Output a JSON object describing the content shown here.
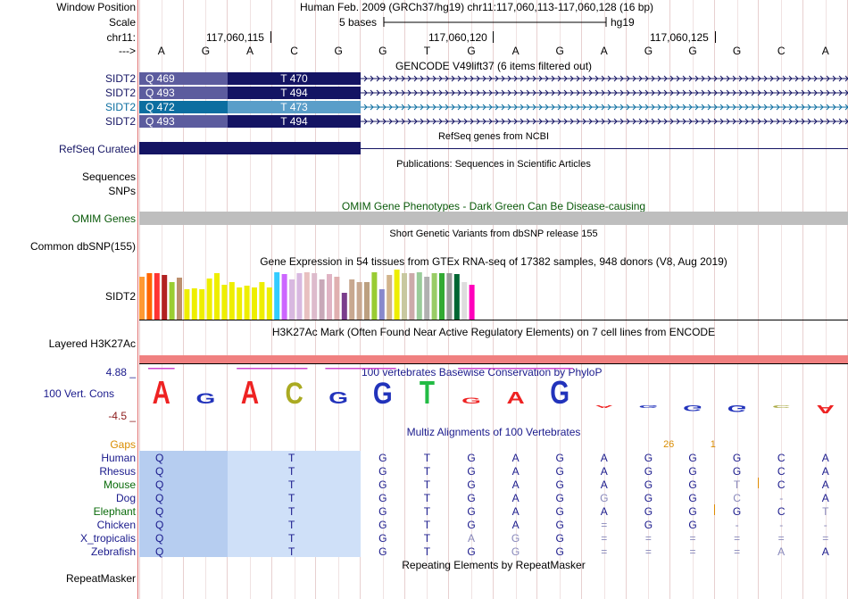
{
  "header": {
    "window_position_label": "Window Position",
    "window_position_text": "Human Feb. 2009 (GRCh37/hg19)   chr11:117,060,113-117,060,128 (16 bp)",
    "scale_label": "Scale",
    "scale_text": "5 bases",
    "scale_assembly": "hg19",
    "chrom_label": "chr11:",
    "positions": [
      "117,060,115",
      "117,060,120",
      "117,060,125"
    ],
    "strand_label": "--->",
    "bases": [
      "A",
      "G",
      "A",
      "C",
      "G",
      "G",
      "T",
      "G",
      "A",
      "G",
      "A",
      "G",
      "G",
      "G",
      "C",
      "A"
    ]
  },
  "gencode": {
    "title": "GENCODE V49lift37 (6 items filtered out)",
    "rows": [
      {
        "label": "SIDT2",
        "q": "Q 469",
        "t": "T 470",
        "color": "#141463",
        "qcolor": "#5c5c9e",
        "arrow": "#141463"
      },
      {
        "label": "SIDT2",
        "q": "Q 493",
        "t": "T 494",
        "color": "#141463",
        "qcolor": "#5c5c9e",
        "arrow": "#141463"
      },
      {
        "label": "SIDT2",
        "q": "Q 472",
        "t": "T 473",
        "color": "#5a9ec9",
        "qcolor": "#0c6ea0",
        "arrow": "#0c6ea0"
      },
      {
        "label": "SIDT2",
        "q": "Q 493",
        "t": "T 494",
        "color": "#141463",
        "qcolor": "#5c5c9e",
        "arrow": "#141463"
      }
    ]
  },
  "refseq": {
    "label": "RefSeq Curated",
    "caption": "RefSeq genes from NCBI"
  },
  "publications": {
    "caption": "Publications: Sequences in Scientific Articles"
  },
  "sequences": {
    "label": "Sequences"
  },
  "snps": {
    "label": "SNPs"
  },
  "omim": {
    "label": "OMIM Genes",
    "caption": "OMIM Gene Phenotypes - Dark Green Can Be Disease-causing"
  },
  "dbsnp": {
    "label": "Common dbSNP(155)",
    "caption": "Short Genetic Variants from dbSNP release 155"
  },
  "gtex": {
    "caption": "Gene Expression in 54 tissues from GTEx RNA-seq of 17382 samples, 948 donors (V8, Aug 2019)",
    "label": "SIDT2",
    "bars": [
      {
        "level": 0.86,
        "color": "#ff9933"
      },
      {
        "level": 0.93,
        "color": "#ff6600"
      },
      {
        "level": 0.93,
        "color": "#ff3333"
      },
      {
        "level": 0.9,
        "color": "#b22222"
      },
      {
        "level": 0.75,
        "color": "#9acd32"
      },
      {
        "level": 0.84,
        "color": "#bc8f6e"
      },
      {
        "level": 0.6,
        "color": "#eeee00"
      },
      {
        "level": 0.62,
        "color": "#eeee00"
      },
      {
        "level": 0.6,
        "color": "#eeee00"
      },
      {
        "level": 0.82,
        "color": "#eeee00"
      },
      {
        "level": 0.93,
        "color": "#eeee00"
      },
      {
        "level": 0.7,
        "color": "#eeee00"
      },
      {
        "level": 0.75,
        "color": "#eeee00"
      },
      {
        "level": 0.65,
        "color": "#eeee00"
      },
      {
        "level": 0.68,
        "color": "#eeee00"
      },
      {
        "level": 0.65,
        "color": "#eeee00"
      },
      {
        "level": 0.75,
        "color": "#eeee00"
      },
      {
        "level": 0.65,
        "color": "#eeee00"
      },
      {
        "level": 0.95,
        "color": "#33ccff"
      },
      {
        "level": 0.91,
        "color": "#cc66ff"
      },
      {
        "level": 0.8,
        "color": "#d8b8e0"
      },
      {
        "level": 0.93,
        "color": "#d8b8e0"
      },
      {
        "level": 0.95,
        "color": "#e8c0c0"
      },
      {
        "level": 0.93,
        "color": "#ddbbcc"
      },
      {
        "level": 0.8,
        "color": "#c8a8b8"
      },
      {
        "level": 0.91,
        "color": "#e0b4c4"
      },
      {
        "level": 0.86,
        "color": "#e0b0b0"
      },
      {
        "level": 0.53,
        "color": "#7a3d8c"
      },
      {
        "level": 0.8,
        "color": "#c8a890"
      },
      {
        "level": 0.75,
        "color": "#c8a890"
      },
      {
        "level": 0.75,
        "color": "#bca080"
      },
      {
        "level": 0.95,
        "color": "#99cc33"
      },
      {
        "level": 0.6,
        "color": "#8888cc"
      },
      {
        "level": 0.9,
        "color": "#d2b48c"
      },
      {
        "level": 1.0,
        "color": "#eeee00"
      },
      {
        "level": 0.93,
        "color": "#c8c8a0"
      },
      {
        "level": 0.93,
        "color": "#ccaaaa"
      },
      {
        "level": 0.95,
        "color": "#99cc99"
      },
      {
        "level": 0.86,
        "color": "#b0b0b0"
      },
      {
        "level": 0.93,
        "color": "#99cc66"
      },
      {
        "level": 0.93,
        "color": "#33aa33"
      },
      {
        "level": 0.93,
        "color": "#999999"
      },
      {
        "level": 0.91,
        "color": "#006633"
      },
      {
        "level": 0.75,
        "color": "#dddddd"
      },
      {
        "level": 0.7,
        "color": "#ff00bb"
      }
    ]
  },
  "h3k27ac": {
    "label": "Layered H3K27Ac",
    "caption": "H3K27Ac Mark (Often Found Near Active Regulatory Elements) on 7 cell lines from ENCODE"
  },
  "conservation": {
    "label": "100 Vert. Cons",
    "max_label": "4.88 _",
    "min_label": "-4.5 _",
    "caption": "100 vertebrates Basewise Conservation by PhyloP",
    "logo": [
      {
        "letter": "A",
        "color": "#ee2222",
        "level": 1.0
      },
      {
        "letter": "G",
        "color": "#2233bb",
        "level": 0.45
      },
      {
        "letter": "A",
        "color": "#ee2222",
        "level": 1.0
      },
      {
        "letter": "C",
        "color": "#aaaa22",
        "level": 0.95
      },
      {
        "letter": "G",
        "color": "#2233bb",
        "level": 0.5
      },
      {
        "letter": "G",
        "color": "#2233bb",
        "level": 0.95
      },
      {
        "letter": "T",
        "color": "#22bb44",
        "level": 1.0
      },
      {
        "letter": "G",
        "color": "#ee2222",
        "level": 0.25
      },
      {
        "letter": "A",
        "color": "#ee2222",
        "level": 0.5
      },
      {
        "letter": "G",
        "color": "#2233bb",
        "level": 1.0
      },
      {
        "letter": "A",
        "color": "#ee2222",
        "level": -0.1
      },
      {
        "letter": "G",
        "color": "#2233bb",
        "level": -0.05
      },
      {
        "letter": "G",
        "color": "#2233bb",
        "level": -0.25
      },
      {
        "letter": "G",
        "color": "#2233bb",
        "level": -0.3
      },
      {
        "letter": "C",
        "color": "#aaaa44",
        "level": -0.1
      },
      {
        "letter": "A",
        "color": "#ee2222",
        "level": -0.35
      }
    ]
  },
  "multiz": {
    "caption": "Multiz Alignments of 100 Vertebrates",
    "gaps_label": "Gaps",
    "gap_counts": [
      {
        "col": 12,
        "text": "26"
      },
      {
        "col": 13,
        "text": "1"
      }
    ],
    "species": [
      {
        "name": "Human",
        "bases": [
          "G",
          "T",
          "G",
          "A",
          "G",
          "A",
          "G",
          "G",
          "G",
          "C",
          "A"
        ],
        "faded": []
      },
      {
        "name": "Rhesus",
        "bases": [
          "G",
          "T",
          "G",
          "A",
          "G",
          "A",
          "G",
          "G",
          "G",
          "C",
          "A"
        ],
        "faded": []
      },
      {
        "name": "Mouse",
        "bases": [
          "G",
          "T",
          "G",
          "A",
          "G",
          "A",
          "G",
          "G",
          "T",
          "C",
          "A"
        ],
        "faded": [
          8
        ],
        "color": "#0a6b0a"
      },
      {
        "name": "Dog",
        "bases": [
          "G",
          "T",
          "G",
          "A",
          "G",
          "G",
          "G",
          "G",
          "C",
          "-",
          "A"
        ],
        "faded": [
          5,
          8,
          9
        ]
      },
      {
        "name": "Elephant",
        "bases": [
          "G",
          "T",
          "G",
          "A",
          "G",
          "A",
          "G",
          "G",
          "G",
          "C",
          "T"
        ],
        "faded": [
          10
        ],
        "color": "#0a6b0a"
      },
      {
        "name": "Chicken",
        "bases": [
          "G",
          "T",
          "G",
          "A",
          "G",
          "=",
          "G",
          "G",
          "-",
          "-",
          "-"
        ],
        "faded": [
          5,
          8,
          9,
          10
        ]
      },
      {
        "name": "X_tropicalis",
        "bases": [
          "G",
          "T",
          "A",
          "G",
          "G",
          "=",
          "=",
          "=",
          "=",
          "=",
          "="
        ],
        "faded": [
          2,
          3,
          5,
          6,
          7,
          8,
          9,
          10
        ]
      },
      {
        "name": "Zebrafish",
        "bases": [
          "G",
          "T",
          "G",
          "G",
          "G",
          "=",
          "=",
          "=",
          "=",
          "A",
          "A"
        ],
        "faded": [
          3,
          5,
          6,
          7,
          8,
          9
        ]
      }
    ]
  },
  "repeatmasker": {
    "label": "RepeatMasker",
    "caption": "Repeating Elements by RepeatMasker"
  }
}
